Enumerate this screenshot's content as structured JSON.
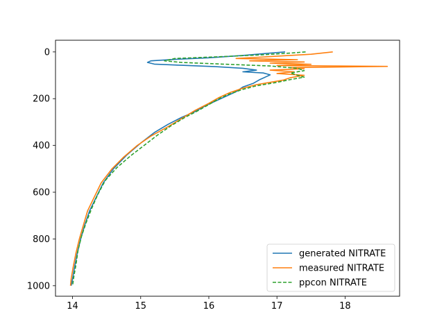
{
  "chart_data": {
    "type": "line",
    "title": "",
    "xlabel": "",
    "ylabel": "",
    "xlim": [
      13.75,
      18.8
    ],
    "ylim": [
      1045,
      -50
    ],
    "y_inverted": true,
    "xticks": [
      14,
      15,
      16,
      17,
      18
    ],
    "yticks": [
      0,
      200,
      400,
      600,
      800,
      1000
    ],
    "grid": false,
    "legend_position": "lower-right",
    "series": [
      {
        "name": "generated NITRATE",
        "color": "#1f77b4",
        "linestyle": "solid",
        "points": [
          [
            17.12,
            0
          ],
          [
            16.9,
            5
          ],
          [
            16.5,
            15
          ],
          [
            16.0,
            25
          ],
          [
            15.5,
            32
          ],
          [
            15.15,
            38
          ],
          [
            15.1,
            45
          ],
          [
            15.2,
            52
          ],
          [
            15.6,
            57
          ],
          [
            16.1,
            63
          ],
          [
            16.5,
            70
          ],
          [
            16.7,
            78
          ],
          [
            16.5,
            85
          ],
          [
            16.8,
            90
          ],
          [
            16.9,
            98
          ],
          [
            16.85,
            105
          ],
          [
            16.75,
            118
          ],
          [
            16.65,
            135
          ],
          [
            16.5,
            150
          ],
          [
            16.4,
            170
          ],
          [
            16.25,
            190
          ],
          [
            16.1,
            210
          ],
          [
            15.95,
            230
          ],
          [
            15.8,
            255
          ],
          [
            15.6,
            280
          ],
          [
            15.4,
            310
          ],
          [
            15.2,
            345
          ],
          [
            15.0,
            390
          ],
          [
            14.8,
            440
          ],
          [
            14.6,
            500
          ],
          [
            14.45,
            560
          ],
          [
            14.35,
            620
          ],
          [
            14.25,
            680
          ],
          [
            14.18,
            740
          ],
          [
            14.12,
            800
          ],
          [
            14.07,
            860
          ],
          [
            14.03,
            920
          ],
          [
            14.0,
            970
          ],
          [
            13.98,
            1000
          ]
        ]
      },
      {
        "name": "measured NITRATE",
        "color": "#ff7f0e",
        "linestyle": "solid",
        "points": [
          [
            17.82,
            0
          ],
          [
            17.5,
            10
          ],
          [
            16.9,
            20
          ],
          [
            16.4,
            28
          ],
          [
            17.3,
            33
          ],
          [
            16.6,
            38
          ],
          [
            17.4,
            43
          ],
          [
            16.9,
            48
          ],
          [
            17.5,
            53
          ],
          [
            17.0,
            58
          ],
          [
            18.62,
            62
          ],
          [
            17.2,
            67
          ],
          [
            17.4,
            72
          ],
          [
            16.9,
            78
          ],
          [
            17.25,
            85
          ],
          [
            17.0,
            92
          ],
          [
            17.4,
            100
          ],
          [
            17.2,
            110
          ],
          [
            17.1,
            120
          ],
          [
            16.9,
            130
          ],
          [
            16.7,
            140
          ],
          [
            16.5,
            155
          ],
          [
            16.3,
            175
          ],
          [
            16.15,
            195
          ],
          [
            16.0,
            220
          ],
          [
            15.8,
            250
          ],
          [
            15.6,
            285
          ],
          [
            15.4,
            320
          ],
          [
            15.15,
            360
          ],
          [
            14.95,
            400
          ],
          [
            14.75,
            450
          ],
          [
            14.58,
            500
          ],
          [
            14.42,
            560
          ],
          [
            14.32,
            620
          ],
          [
            14.22,
            680
          ],
          [
            14.16,
            740
          ],
          [
            14.1,
            800
          ],
          [
            14.05,
            860
          ],
          [
            14.01,
            920
          ],
          [
            13.98,
            970
          ],
          [
            13.97,
            1000
          ]
        ]
      },
      {
        "name": "ppcon NITRATE",
        "color": "#2ca02c",
        "linestyle": "dashed",
        "points": [
          [
            17.42,
            0
          ],
          [
            17.2,
            5
          ],
          [
            16.8,
            12
          ],
          [
            16.2,
            20
          ],
          [
            15.5,
            28
          ],
          [
            15.35,
            38
          ],
          [
            15.6,
            45
          ],
          [
            16.2,
            52
          ],
          [
            16.9,
            60
          ],
          [
            17.3,
            70
          ],
          [
            17.4,
            80
          ],
          [
            17.2,
            90
          ],
          [
            17.3,
            100
          ],
          [
            17.4,
            108
          ],
          [
            17.2,
            118
          ],
          [
            17.0,
            130
          ],
          [
            16.7,
            145
          ],
          [
            16.5,
            160
          ],
          [
            16.3,
            180
          ],
          [
            16.15,
            200
          ],
          [
            16.0,
            225
          ],
          [
            15.85,
            250
          ],
          [
            15.65,
            280
          ],
          [
            15.45,
            315
          ],
          [
            15.25,
            355
          ],
          [
            15.05,
            400
          ],
          [
            14.85,
            445
          ],
          [
            14.65,
            495
          ],
          [
            14.48,
            550
          ],
          [
            14.37,
            610
          ],
          [
            14.28,
            670
          ],
          [
            14.2,
            730
          ],
          [
            14.13,
            790
          ],
          [
            14.08,
            850
          ],
          [
            14.05,
            910
          ],
          [
            14.02,
            960
          ],
          [
            14.0,
            1000
          ]
        ]
      }
    ]
  }
}
